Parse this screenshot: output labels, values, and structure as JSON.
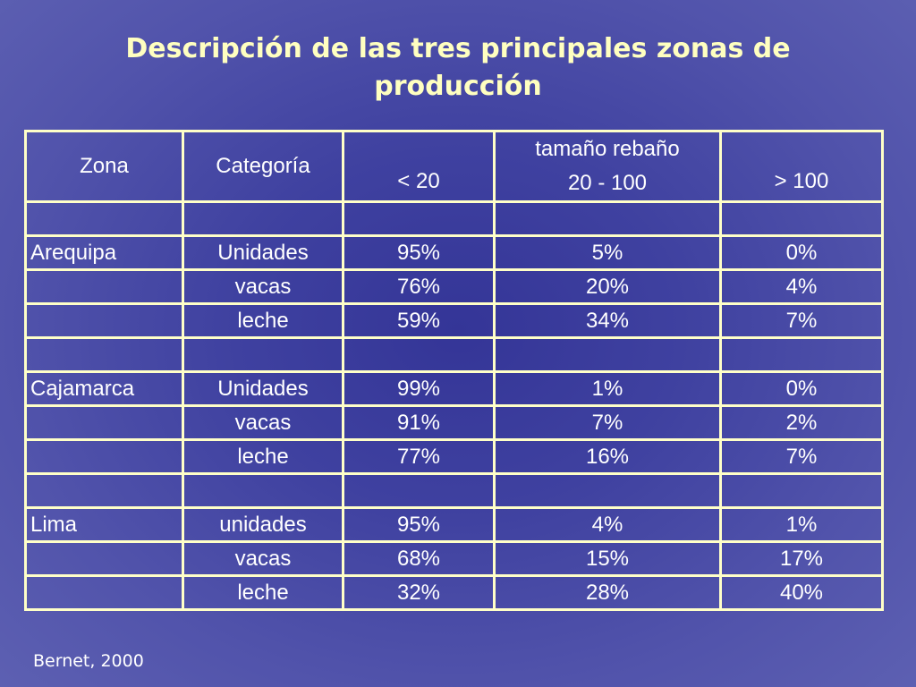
{
  "title": {
    "line1": "Descripción de las tres principales zonas de",
    "line2": "producción"
  },
  "table": {
    "headers": {
      "zona": "Zona",
      "categoria": "Categoría",
      "group": "tamaño rebaño",
      "col_lt20": "< 20",
      "col_20_100": "20 - 100",
      "col_gt100": "> 100"
    },
    "rows": [
      {
        "zona": "",
        "categoria": "",
        "lt20": "",
        "mid": "",
        "gt100": ""
      },
      {
        "zona": "Arequipa",
        "categoria": "Unidades",
        "lt20": "95%",
        "mid": "5%",
        "gt100": "0%"
      },
      {
        "zona": "",
        "categoria": "vacas",
        "lt20": "76%",
        "mid": "20%",
        "gt100": "4%"
      },
      {
        "zona": "",
        "categoria": "leche",
        "lt20": "59%",
        "mid": "34%",
        "gt100": "7%"
      },
      {
        "zona": "",
        "categoria": "",
        "lt20": "",
        "mid": "",
        "gt100": ""
      },
      {
        "zona": "Cajamarca",
        "categoria": "Unidades",
        "lt20": "99%",
        "mid": "1%",
        "gt100": "0%"
      },
      {
        "zona": "",
        "categoria": "vacas",
        "lt20": "91%",
        "mid": "7%",
        "gt100": "2%"
      },
      {
        "zona": "",
        "categoria": "leche",
        "lt20": "77%",
        "mid": "16%",
        "gt100": "7%"
      },
      {
        "zona": "",
        "categoria": "",
        "lt20": "",
        "mid": "",
        "gt100": ""
      },
      {
        "zona": "Lima",
        "categoria": "unidades",
        "lt20": "95%",
        "mid": "4%",
        "gt100": "1%"
      },
      {
        "zona": "",
        "categoria": "vacas",
        "lt20": "68%",
        "mid": "15%",
        "gt100": "17%"
      },
      {
        "zona": "",
        "categoria": "leche",
        "lt20": "32%",
        "mid": "28%",
        "gt100": "40%"
      }
    ]
  },
  "source": "Bernet, 2000",
  "colors": {
    "title": "#ffffc0",
    "border": "#ffffc8",
    "text": "#ffffff",
    "background": "#3f41a0"
  }
}
